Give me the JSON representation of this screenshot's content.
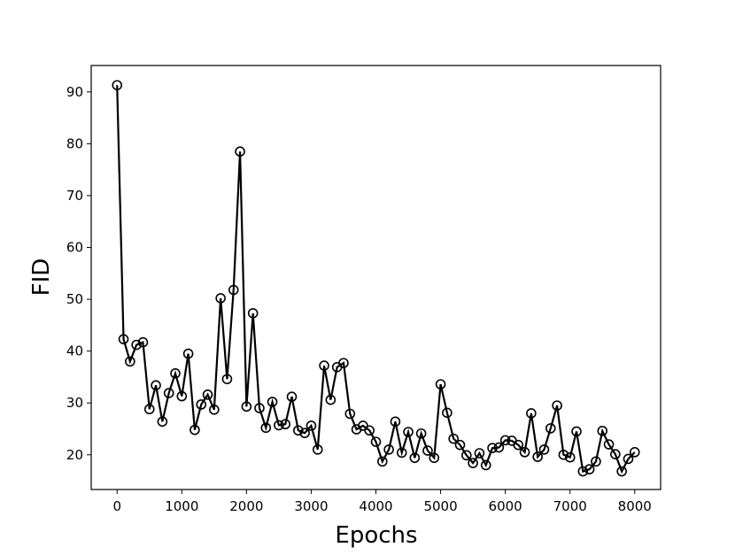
{
  "chart_data": {
    "type": "line",
    "xlabel": "Epochs",
    "ylabel": "FID",
    "x": [
      0,
      100,
      200,
      300,
      400,
      500,
      600,
      700,
      800,
      900,
      1000,
      1100,
      1200,
      1300,
      1400,
      1500,
      1600,
      1700,
      1800,
      1900,
      2000,
      2100,
      2200,
      2300,
      2400,
      2500,
      2600,
      2700,
      2800,
      2900,
      3000,
      3100,
      3200,
      3300,
      3400,
      3500,
      3600,
      3700,
      3800,
      3900,
      4000,
      4100,
      4200,
      4300,
      4400,
      4500,
      4600,
      4700,
      4800,
      4900,
      5000,
      5100,
      5200,
      5300,
      5400,
      5500,
      5600,
      5700,
      5800,
      5900,
      6000,
      6100,
      6200,
      6300,
      6400,
      6500,
      6600,
      6700,
      6800,
      6900,
      7000,
      7100,
      7200,
      7300,
      7400,
      7500,
      7600,
      7700,
      7800,
      7900,
      8000
    ],
    "series": [
      {
        "color": "#000000",
        "marker": "open-circle",
        "values": [
          91.3,
          42.3,
          38,
          41.2,
          41.7,
          28.8,
          33.4,
          26.4,
          31.9,
          35.7,
          31.3,
          39.5,
          24.8,
          29.7,
          31.6,
          28.7,
          50.2,
          34.6,
          51.8,
          78.5,
          29.3,
          47.3,
          29,
          25.2,
          30.2,
          25.7,
          25.9,
          31.2,
          24.7,
          24.2,
          25.6,
          21,
          37.2,
          30.6,
          36.9,
          37.7,
          27.9,
          24.9,
          25.6,
          24.7,
          22.5,
          18.7,
          21,
          26.4,
          20.4,
          24.4,
          19.4,
          24.1,
          20.8,
          19.4,
          33.6,
          28.1,
          23.1,
          21.9,
          19.9,
          18.4,
          20.3,
          18,
          21.3,
          21.4,
          22.8,
          22.7,
          21.9,
          20.5,
          28,
          19.6,
          21,
          25.1,
          29.5,
          20,
          19.5,
          24.5,
          16.8,
          17.2,
          18.7,
          24.6,
          22,
          20.1,
          16.8,
          19.2,
          20.5
        ]
      }
    ],
    "xlim": [
      -400,
      8400
    ],
    "ylim": [
      13.3,
      95.1
    ],
    "xticks": [
      0,
      1000,
      2000,
      3000,
      4000,
      5000,
      6000,
      7000,
      8000
    ],
    "yticks": [
      20,
      30,
      40,
      50,
      60,
      70,
      80,
      90
    ]
  }
}
